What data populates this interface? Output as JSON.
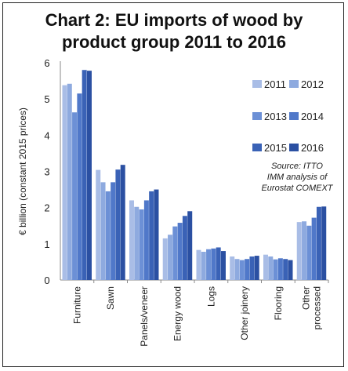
{
  "title_line1": "Chart 2: EU imports of wood by",
  "title_line2": "product group 2011 to 2016",
  "source_line1": "Source: ITTO",
  "source_line2": "IMM analysis of",
  "source_line3": "Eurostat COMEXT",
  "chart_data": {
    "type": "bar",
    "title": "Chart 2: EU imports of wood by product group 2011 to 2016",
    "ylabel": "€ billion (constant 2015 prices)",
    "xlabel": "",
    "ylim": [
      0,
      6
    ],
    "yticks": [
      0,
      1,
      2,
      3,
      4,
      5,
      6
    ],
    "grid": false,
    "legend_placement": "top-right",
    "categories": [
      "Furniture",
      "Sawn",
      "Panels/veneer",
      "Energy wood",
      "Logs",
      "Other joinery",
      "Flooring",
      "Other processed"
    ],
    "series": [
      {
        "name": "2011",
        "color": "#a9bde6",
        "values": [
          5.38,
          3.04,
          2.2,
          1.15,
          0.83,
          0.65,
          0.7,
          1.6
        ]
      },
      {
        "name": "2012",
        "color": "#8eaadf",
        "values": [
          5.42,
          2.7,
          2.02,
          1.25,
          0.78,
          0.58,
          0.65,
          1.62
        ]
      },
      {
        "name": "2013",
        "color": "#6c90d6",
        "values": [
          4.63,
          2.45,
          1.95,
          1.48,
          0.85,
          0.55,
          0.57,
          1.5
        ]
      },
      {
        "name": "2014",
        "color": "#5078c9",
        "values": [
          5.15,
          2.7,
          2.2,
          1.58,
          0.87,
          0.58,
          0.6,
          1.72
        ]
      },
      {
        "name": "2015",
        "color": "#3a62b6",
        "values": [
          5.8,
          3.05,
          2.45,
          1.77,
          0.9,
          0.65,
          0.58,
          2.02
        ]
      },
      {
        "name": "2016",
        "color": "#2b50a2",
        "values": [
          5.78,
          3.18,
          2.5,
          1.9,
          0.8,
          0.67,
          0.55,
          2.03
        ]
      }
    ]
  }
}
